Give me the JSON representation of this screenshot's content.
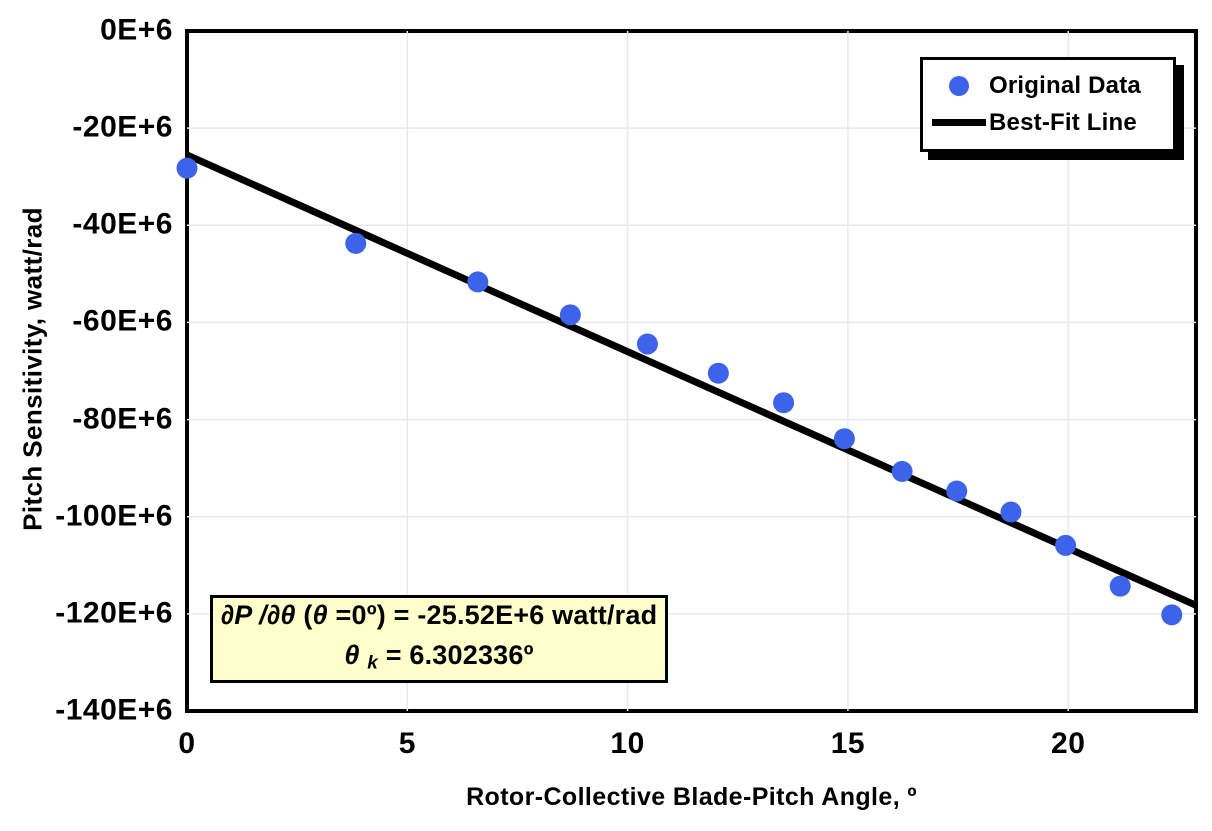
{
  "chart_data": {
    "type": "scatter",
    "title": "",
    "xlabel": "Rotor-Collective Blade-Pitch Angle, º",
    "ylabel": "Pitch Sensitivity, watt/rad",
    "x_unit": "degrees",
    "y_unit": "E+6 watt/rad",
    "xlim": [
      0,
      22.9
    ],
    "ylim": [
      -140,
      0
    ],
    "grid": true,
    "legend_position": "top-right",
    "series": [
      {
        "name": "Original Data",
        "type": "scatter",
        "color": "#3c63ea",
        "x": [
          0.0,
          3.83,
          6.6,
          8.7,
          10.45,
          12.06,
          13.54,
          14.92,
          16.23,
          17.47,
          18.7,
          19.94,
          21.18,
          22.35
        ],
        "y": [
          -28.24,
          -43.73,
          -51.66,
          -58.44,
          -64.44,
          -70.46,
          -76.53,
          -83.94,
          -90.67,
          -94.71,
          -99.04,
          -105.9,
          -114.3,
          -120.2
        ]
      },
      {
        "name": "Best-Fit Line",
        "type": "line",
        "color": "#000000",
        "fit_formula": "dP/dtheta(0) * (1 + theta/theta_k)",
        "intercept_E6": -25.52,
        "theta_k_deg": 6.302336,
        "x_range": [
          0,
          22.9
        ]
      }
    ]
  },
  "x_axis": {
    "title": "Rotor-Collective Blade-Pitch Angle, º",
    "tick_labels": [
      "0",
      "5",
      "10",
      "15",
      "20"
    ],
    "tick_values": [
      0,
      5,
      10,
      15,
      20
    ]
  },
  "y_axis": {
    "title": "Pitch Sensitivity, watt/rad",
    "tick_labels": [
      "0E+6",
      "-20E+6",
      "-40E+6",
      "-60E+6",
      "-80E+6",
      "-100E+6",
      "-120E+6",
      "-140E+6"
    ],
    "tick_values": [
      0,
      -20,
      -40,
      -60,
      -80,
      -100,
      -120,
      -140
    ]
  },
  "legend": {
    "items": [
      {
        "label": "Original Data",
        "marker": "dot"
      },
      {
        "label": "Best-Fit Line",
        "marker": "line"
      }
    ]
  },
  "annotation": {
    "bg": "#ffffcc",
    "line1": [
      {
        "text": "∂P /∂θ ",
        "style": "italic"
      },
      {
        "text": "(",
        "style": "normal"
      },
      {
        "text": "θ ",
        "style": "italic"
      },
      {
        "text": "=0º) = -25.52E+6 watt/rad",
        "style": "normal"
      }
    ],
    "line2": [
      {
        "text": "θ ",
        "style": "italic"
      },
      {
        "text": "k",
        "style": "subscript"
      },
      {
        "text": " = 6.302336º",
        "style": "normal"
      }
    ]
  },
  "colors": {
    "marker_blue": "#3c63ea",
    "gridline": "#e9e9e9",
    "axis": "#000000",
    "annotation_bg": "#ffffcc"
  }
}
